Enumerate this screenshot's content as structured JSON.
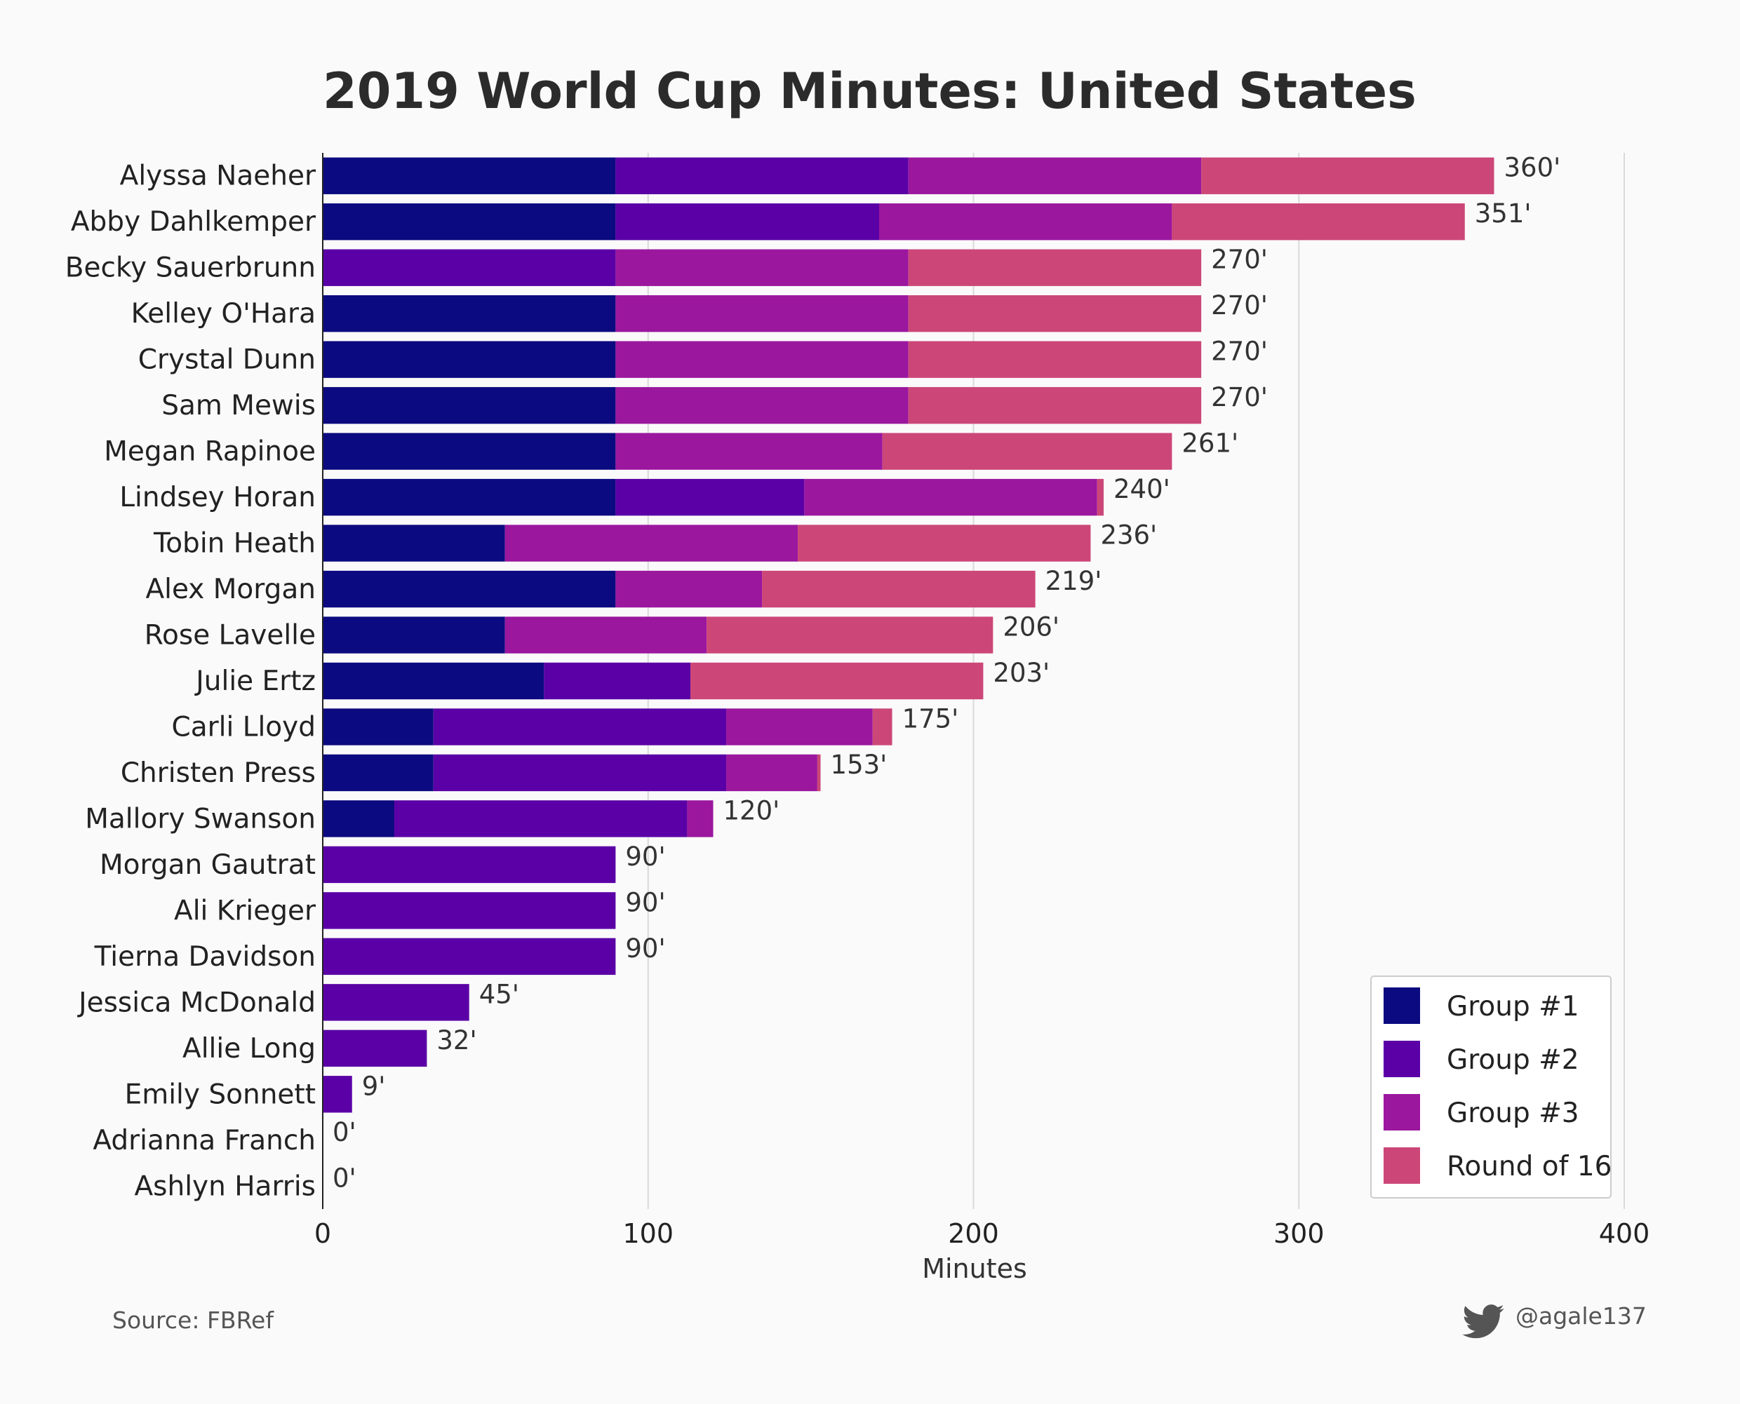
{
  "chart_data": {
    "type": "bar",
    "orientation": "horizontal",
    "stacked": true,
    "title": "2019 World Cup Minutes: United States",
    "xlabel": "Minutes",
    "ylabel": "",
    "xlim": [
      0,
      400
    ],
    "xticks": [
      0,
      100,
      200,
      300,
      400
    ],
    "grid": "vertical",
    "legend_position": "bottom-right",
    "value_suffix": "'",
    "categories": [
      "Alyssa Naeher",
      "Abby Dahlkemper",
      "Becky Sauerbrunn",
      "Kelley O'Hara",
      "Crystal Dunn",
      "Sam Mewis",
      "Megan Rapinoe",
      "Lindsey Horan",
      "Tobin Heath",
      "Alex Morgan",
      "Rose Lavelle",
      "Julie Ertz",
      "Carli Lloyd",
      "Christen Press",
      "Mallory Swanson",
      "Morgan Gautrat",
      "Ali Krieger",
      "Tierna Davidson",
      "Jessica McDonald",
      "Allie Long",
      "Emily Sonnett",
      "Adrianna Franch",
      "Ashlyn Harris"
    ],
    "totals": [
      360,
      351,
      270,
      270,
      270,
      270,
      261,
      240,
      236,
      219,
      206,
      203,
      175,
      153,
      120,
      90,
      90,
      90,
      45,
      32,
      9,
      0,
      0
    ],
    "series": [
      {
        "name": "Group #1",
        "color": "#0c0a80",
        "values": [
          90,
          90,
          0,
          90,
          90,
          90,
          90,
          90,
          56,
          90,
          56,
          68,
          34,
          34,
          22,
          0,
          0,
          0,
          0,
          0,
          0,
          0,
          0
        ]
      },
      {
        "name": "Group #2",
        "color": "#5a00a6",
        "values": [
          90,
          81,
          90,
          0,
          0,
          0,
          0,
          58,
          0,
          0,
          0,
          45,
          90,
          90,
          90,
          90,
          90,
          90,
          45,
          32,
          9,
          0,
          0
        ]
      },
      {
        "name": "Group #3",
        "color": "#9b179e",
        "values": [
          90,
          90,
          90,
          90,
          90,
          90,
          82,
          90,
          90,
          45,
          62,
          0,
          45,
          28,
          8,
          0,
          0,
          0,
          0,
          0,
          0,
          0,
          0
        ]
      },
      {
        "name": "Round of 16",
        "color": "#cc4778",
        "values": [
          90,
          90,
          90,
          90,
          90,
          90,
          89,
          2,
          90,
          84,
          88,
          90,
          6,
          1,
          0,
          0,
          0,
          0,
          0,
          0,
          0,
          0,
          0
        ]
      }
    ]
  },
  "footer": {
    "source": "Source: FBRef",
    "handle": "@agale137",
    "handle_icon": "twitter-bird-icon"
  },
  "colors": {
    "background": "#fafafa",
    "gridline": "#d9d9d9",
    "text": "#222222"
  }
}
